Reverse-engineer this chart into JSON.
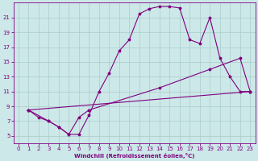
{
  "xlabel": "Windchill (Refroidissement éolien,°C)",
  "bg_color": "#cce8e8",
  "line_color": "#800080",
  "grid_color": "#aacccc",
  "xlim": [
    -0.5,
    23.5
  ],
  "ylim": [
    4.0,
    23.0
  ],
  "xticks": [
    0,
    1,
    2,
    3,
    4,
    5,
    6,
    7,
    8,
    9,
    10,
    11,
    12,
    13,
    14,
    15,
    16,
    17,
    18,
    19,
    20,
    21,
    22,
    23
  ],
  "yticks": [
    5,
    7,
    9,
    11,
    13,
    15,
    17,
    19,
    21
  ],
  "series1_x": [
    1,
    2,
    3,
    4,
    5,
    6,
    7,
    8,
    9,
    10,
    11,
    12,
    13,
    14,
    15,
    16,
    17,
    18,
    19,
    20,
    21,
    22,
    23
  ],
  "series1_y": [
    8.5,
    7.5,
    7.0,
    6.2,
    5.2,
    5.2,
    7.8,
    11.0,
    13.5,
    16.5,
    18.0,
    21.5,
    22.2,
    22.5,
    22.5,
    22.3,
    18.0,
    17.5,
    21.0,
    15.5,
    13.0,
    11.0,
    11.0
  ],
  "series2_x": [
    1,
    3,
    4,
    5,
    6,
    7,
    14,
    19,
    22,
    23
  ],
  "series2_y": [
    8.5,
    7.0,
    6.2,
    5.2,
    7.5,
    8.5,
    11.5,
    14.0,
    15.5,
    11.0
  ],
  "series3_x": [
    1,
    23
  ],
  "series3_y": [
    8.5,
    11.0
  ],
  "marker_size": 2.5,
  "line_width": 0.8,
  "tick_fontsize": 5,
  "xlabel_fontsize": 5
}
